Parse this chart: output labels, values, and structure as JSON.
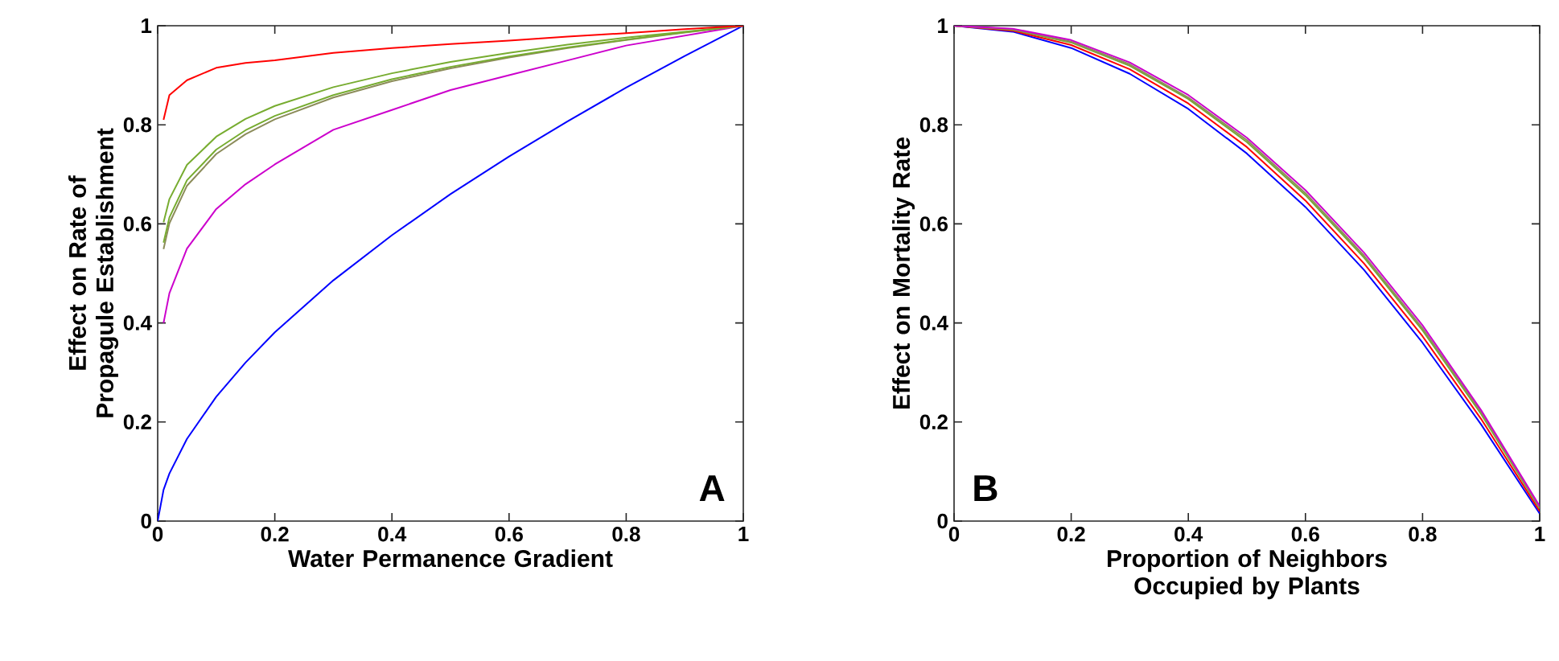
{
  "chart_data": [
    {
      "type": "line",
      "xlabel": "Water Permanence Gradient",
      "ylabel": "Effect on Rate of Propagule Establishment",
      "annotations": [
        "A"
      ],
      "xlim": [
        0,
        1
      ],
      "ylim": [
        0,
        1
      ],
      "xticks": [
        0,
        0.2,
        0.4,
        0.6,
        0.8,
        1
      ],
      "yticks": [
        0,
        0.2,
        0.4,
        0.6,
        0.8,
        1
      ],
      "x": [
        0,
        0.01,
        0.02,
        0.05,
        0.1,
        0.15,
        0.2,
        0.3,
        0.4,
        0.5,
        0.6,
        0.7,
        0.8,
        0.9,
        1
      ],
      "series": [
        {
          "color": "#0000ff",
          "values": [
            0,
            0.063,
            0.096,
            0.166,
            0.251,
            0.32,
            0.381,
            0.486,
            0.577,
            0.66,
            0.736,
            0.807,
            0.875,
            0.939,
            1
          ]
        },
        {
          "color": "#cc00cc",
          "x": [
            0.01,
            0.02,
            0.05,
            0.1,
            0.15,
            0.2,
            0.3,
            0.4,
            0.5,
            0.6,
            0.7,
            0.8,
            0.9,
            1
          ],
          "values": [
            0.4,
            0.46,
            0.55,
            0.63,
            0.68,
            0.72,
            0.79,
            0.83,
            0.87,
            0.9,
            0.93,
            0.96,
            0.98,
            1
          ]
        },
        {
          "color": "#8c8c5a",
          "x": [
            0.01,
            0.02,
            0.05,
            0.1,
            0.15,
            0.2,
            0.3,
            0.4,
            0.5,
            0.6,
            0.7,
            0.8,
            0.9,
            1
          ],
          "values": [
            0.549,
            0.601,
            0.677,
            0.741,
            0.781,
            0.811,
            0.855,
            0.888,
            0.914,
            0.936,
            0.955,
            0.971,
            0.986,
            1
          ]
        },
        {
          "color": "#77ac30",
          "x": [
            0.01,
            0.02,
            0.05,
            0.1,
            0.15,
            0.2,
            0.3,
            0.4,
            0.5,
            0.6,
            0.7,
            0.8,
            0.9,
            1
          ],
          "values": [
            0.562,
            0.613,
            0.688,
            0.75,
            0.789,
            0.818,
            0.86,
            0.892,
            0.917,
            0.938,
            0.956,
            0.972,
            0.987,
            1
          ]
        },
        {
          "color": "#77ac30",
          "x": [
            0.01,
            0.02,
            0.05,
            0.1,
            0.15,
            0.2,
            0.3,
            0.4,
            0.5,
            0.6,
            0.7,
            0.8,
            0.9,
            1
          ],
          "values": [
            0.603,
            0.65,
            0.719,
            0.776,
            0.812,
            0.838,
            0.876,
            0.904,
            0.927,
            0.945,
            0.962,
            0.976,
            0.988,
            1
          ]
        },
        {
          "color": "#ff0000",
          "x": [
            0.01,
            0.02,
            0.05,
            0.1,
            0.15,
            0.2,
            0.3,
            0.4,
            0.5,
            0.6,
            0.7,
            0.8,
            0.9,
            1
          ],
          "values": [
            0.81,
            0.86,
            0.89,
            0.915,
            0.925,
            0.93,
            0.945,
            0.955,
            0.963,
            0.97,
            0.978,
            0.985,
            0.993,
            1
          ]
        }
      ]
    },
    {
      "type": "line",
      "xlabel": "Proportion of Neighbors Occupied by Plants",
      "ylabel": "Effect on Mortality Rate",
      "annotations": [
        "B"
      ],
      "xlim": [
        0,
        1
      ],
      "ylim": [
        0,
        1
      ],
      "xticks": [
        0,
        0.2,
        0.4,
        0.6,
        0.8,
        1
      ],
      "yticks": [
        0,
        0.2,
        0.4,
        0.6,
        0.8,
        1
      ],
      "x": [
        0,
        0.1,
        0.2,
        0.3,
        0.4,
        0.5,
        0.6,
        0.7,
        0.8,
        0.9,
        1
      ],
      "series": [
        {
          "color": "#0000ff",
          "values": [
            1,
            0.988,
            0.955,
            0.903,
            0.832,
            0.742,
            0.634,
            0.507,
            0.36,
            0.195,
            0.015
          ]
        },
        {
          "color": "#ff0000",
          "values": [
            1,
            0.99,
            0.961,
            0.912,
            0.843,
            0.755,
            0.647,
            0.52,
            0.373,
            0.206,
            0.02
          ]
        },
        {
          "color": "#77ac30",
          "values": [
            1,
            0.992,
            0.966,
            0.919,
            0.852,
            0.765,
            0.658,
            0.532,
            0.385,
            0.216,
            0.025
          ]
        },
        {
          "color": "#8c8c5a",
          "values": [
            1,
            0.993,
            0.968,
            0.922,
            0.855,
            0.769,
            0.662,
            0.536,
            0.389,
            0.22,
            0.027
          ]
        },
        {
          "color": "#cc00cc",
          "values": [
            1,
            0.994,
            0.971,
            0.926,
            0.86,
            0.774,
            0.668,
            0.542,
            0.395,
            0.224,
            0.03
          ]
        }
      ]
    }
  ]
}
